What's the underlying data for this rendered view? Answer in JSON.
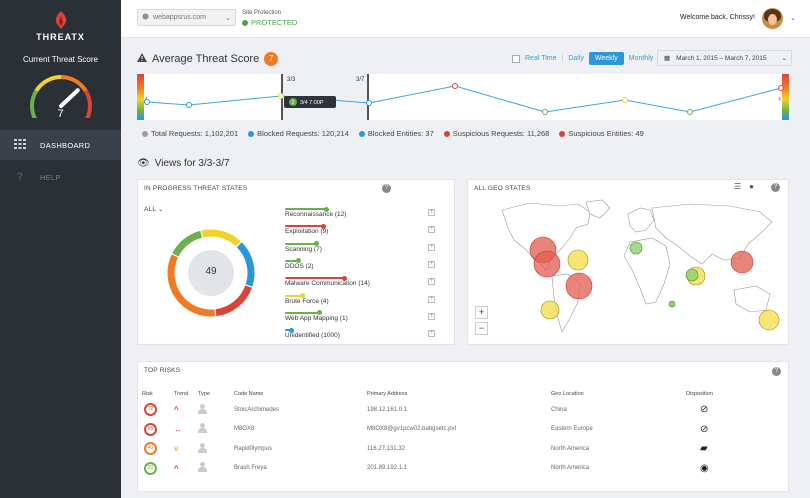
{
  "brand": {
    "name": "THREATX"
  },
  "sidebar": {
    "score_label": "Current Threat Score",
    "score_value": "7",
    "score_level": 0.7,
    "items": [
      {
        "label": "DASHBOARD",
        "icon": "grid-icon",
        "active": true
      },
      {
        "label": "HELP",
        "icon": "question-icon",
        "active": false
      }
    ]
  },
  "topbar": {
    "site_value": "webappsrus.com",
    "protection_label": "Site Protection",
    "protection_status": "PROTECTED",
    "welcome": "Welcome back, Chrissy!"
  },
  "threat": {
    "title": "Average Threat Score",
    "badge": "7",
    "ranges": {
      "realtime": "Real Time",
      "daily": "Daily",
      "weekly": "Weekly",
      "monthly": "Monthly"
    },
    "date_range": "March 1, 2015 – March 7, 2015",
    "window_start": "3/3",
    "window_end": "3/7",
    "tooltip": "3/4 7:00P",
    "tooltip_badge": "3",
    "legend": [
      {
        "label": "Total Requests: 1,102,201",
        "color": "#9e9e9e"
      },
      {
        "label": "Blocked Requests: 120,214",
        "color": "#2b97d8"
      },
      {
        "label": "Blocked Entities: 37",
        "color": "#2b97d8"
      },
      {
        "label": "Suspicious Requests: 11,268",
        "color": "#d9433a"
      },
      {
        "label": "Suspicious Entities: 49",
        "color": "#d9433a"
      }
    ]
  },
  "views": {
    "title": "Views for 3/3-3/7"
  },
  "states": {
    "title": "IN PROGRESS THREAT STATES",
    "filter": "ALL",
    "total": "49",
    "items": [
      {
        "label": "Reconnaissance (12)",
        "color": "#6ab04c",
        "level": 0.6
      },
      {
        "label": "Exploitation (9)",
        "color": "#d9433a",
        "level": 0.55
      },
      {
        "label": "Scanning (7)",
        "color": "#6ab04c",
        "level": 0.45
      },
      {
        "label": "DDOS (2)",
        "color": "#6ab04c",
        "level": 0.2
      },
      {
        "label": "Malware Communication (14)",
        "color": "#d9433a",
        "level": 0.85
      },
      {
        "label": "Brute Force (4)",
        "color": "#f0d32a",
        "level": 0.25
      },
      {
        "label": "Web App Mapping (1)",
        "color": "#6ab04c",
        "level": 0.5
      },
      {
        "label": "Unidentified (1000)",
        "color": "#2b97d8",
        "level": 0.1
      }
    ]
  },
  "geo": {
    "title": "ALL GEO STATES"
  },
  "risks": {
    "title": "TOP RISKS",
    "columns": [
      "Risk",
      "Trend",
      "Type",
      "Code Name",
      "Primary Address",
      "Geo Location",
      "Disposition"
    ],
    "rows": [
      {
        "risk": "72",
        "risk_color": "#d9433a",
        "trend": "^",
        "trend_color": "#d9433a",
        "code": "StoicArchimedes",
        "address": "198.12.161.0.1",
        "geo": "China",
        "disposition": "block-icon"
      },
      {
        "risk": "65",
        "risk_color": "#d9433a",
        "trend": "↔",
        "trend_color": "#d9433a",
        "code": "M8OX8",
        "address": "M8OX8@gv1pcw02.babgsetc.pvt",
        "geo": "Eastern Europe",
        "disposition": "block-icon"
      },
      {
        "risk": "40",
        "risk_color": "#f07b24",
        "trend": "v",
        "trend_color": "#f0b429",
        "code": "Rapid0lympus",
        "address": "116.27.131.32",
        "geo": "North America",
        "disposition": "folder-icon"
      },
      {
        "risk": "20",
        "risk_color": "#6ab04c",
        "trend": "^",
        "trend_color": "#d9433a",
        "code": "Brash Freya",
        "address": "201.89.192.1.1",
        "geo": "North America",
        "disposition": "eye-icon"
      }
    ]
  }
}
